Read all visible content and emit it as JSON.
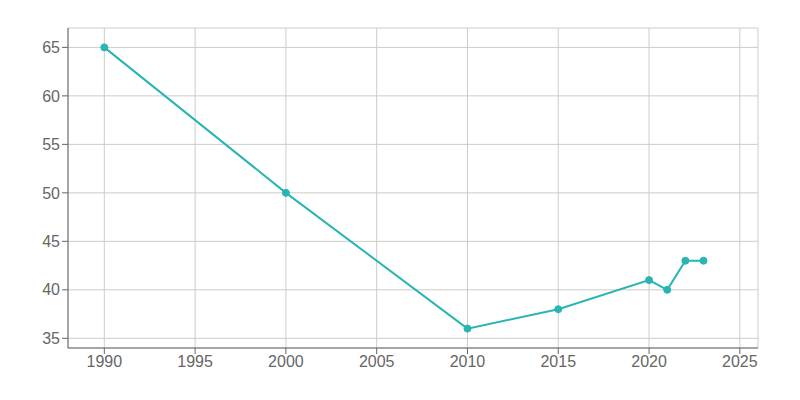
{
  "chart_data": {
    "type": "line",
    "x": [
      1990,
      2000,
      2010,
      2015,
      2020,
      2021,
      2022,
      2023
    ],
    "values": [
      65,
      50,
      36,
      38,
      41,
      40,
      43,
      43
    ],
    "color": "#2ab5b5",
    "marker": "circle",
    "xlim": [
      1988,
      2026
    ],
    "ylim": [
      34,
      67
    ],
    "xticks": [
      1990,
      1995,
      2000,
      2005,
      2010,
      2015,
      2020,
      2025
    ],
    "yticks": [
      35,
      40,
      45,
      50,
      55,
      60,
      65
    ],
    "grid": true
  }
}
